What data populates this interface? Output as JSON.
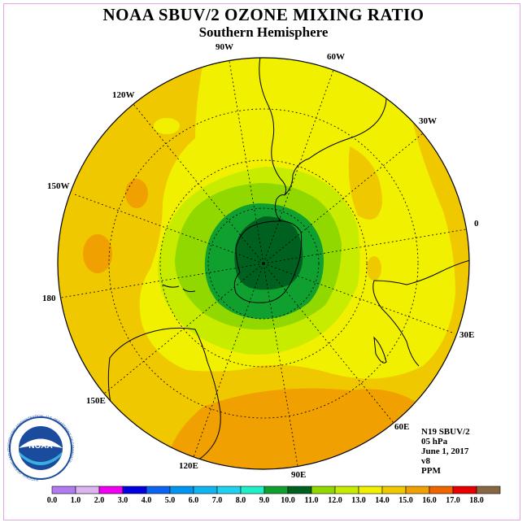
{
  "title": "NOAA SBUV/2 OZONE MIXING RATIO",
  "subtitle": "Southern Hemisphere",
  "info": {
    "satellite": "N19 SBUV/2",
    "level": "05 hPa",
    "date": "June 1, 2017",
    "version": "v8",
    "units": "PPM"
  },
  "logo_text": "NOAA",
  "logo_ring_text": "NATIONAL OCEANIC AND ATMOSPHERIC ADMINISTRATION · U.S. DEPARTMENT OF COMMERCE",
  "longitude_labels": [
    "0",
    "30E",
    "60E",
    "90E",
    "120E",
    "150E",
    "180",
    "150W",
    "120W",
    "90W",
    "60W",
    "30W"
  ],
  "colorbar": {
    "ticks": [
      "0.0",
      "1.0",
      "2.0",
      "3.0",
      "4.0",
      "5.0",
      "6.0",
      "7.0",
      "8.0",
      "9.0",
      "10.0",
      "11.0",
      "12.0",
      "13.0",
      "14.0",
      "15.0",
      "16.0",
      "17.0",
      "18.0"
    ],
    "colors": [
      "#b07cf0",
      "#dcb4f0",
      "#f000f0",
      "#0000e0",
      "#0a64f0",
      "#0096f0",
      "#10b4f0",
      "#20d2f0",
      "#20f0c8",
      "#10a030",
      "#006020",
      "#90d800",
      "#c8ec00",
      "#f0f000",
      "#f0c800",
      "#f0a000",
      "#f06400",
      "#e80000",
      "#886644"
    ]
  },
  "colors": {
    "background": "#ffffff",
    "frame": "#e3a8e3",
    "ozone_13_14": "#f0f000",
    "ozone_14_15": "#f0c800",
    "ozone_15_16": "#f0a000",
    "ozone_12_13": "#c8ec00",
    "ozone_11_12": "#90d800",
    "ozone_9_10": "#10a030",
    "ozone_8_9": "#006020"
  }
}
